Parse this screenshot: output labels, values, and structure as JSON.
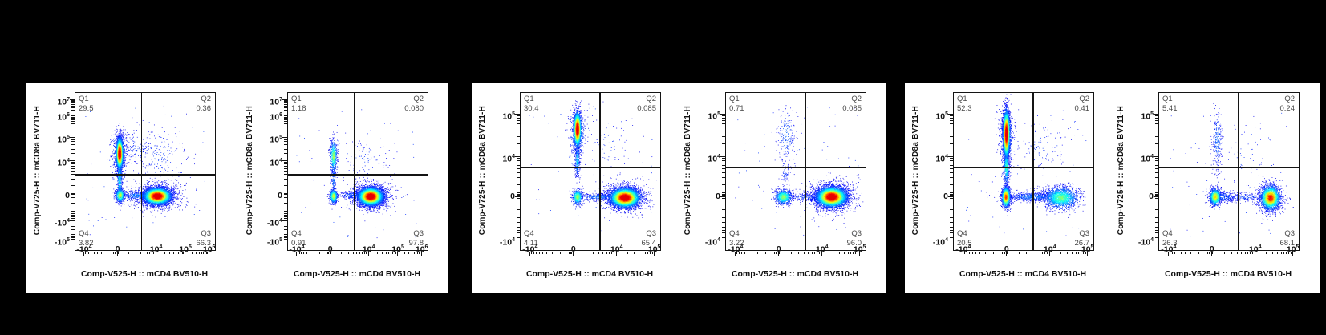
{
  "figure": {
    "description": "Flow cytometry pseudocolor dot plots with quadrant gates (Q1-Q4), mCD8a BV711 vs mCD4 BV510",
    "background": "#000000",
    "panel_background": "#ffffff",
    "axis_color": "#141414",
    "gate_color": "#141414",
    "quadrant_text_color": "#4a4a4a"
  },
  "panels": [
    {
      "name": "panel-1",
      "plots": [
        0,
        1
      ]
    },
    {
      "name": "panel-2",
      "plots": [
        2,
        3
      ]
    },
    {
      "name": "panel-3",
      "plots": [
        4,
        5
      ]
    }
  ],
  "chart_data": [
    {
      "type": "scatter",
      "xlabel": "Comp-V525-H :: mCD4 BV510-H",
      "ylabel": "Comp-V725-H :: mCD8a BV711-H",
      "x_ticks": [
        {
          "m": "-10",
          "e": "4",
          "frac": 0.06
        },
        {
          "m": "0",
          "frac": 0.3
        },
        {
          "m": "10",
          "e": "4",
          "frac": 0.575
        },
        {
          "m": "10",
          "e": "5",
          "frac": 0.785
        },
        {
          "m": "10",
          "e": "6",
          "frac": 0.955
        }
      ],
      "y_ticks": [
        {
          "m": "10",
          "e": "7",
          "frac": 0.045
        },
        {
          "m": "10",
          "e": "6",
          "frac": 0.14
        },
        {
          "m": "10",
          "e": "5",
          "frac": 0.285
        },
        {
          "m": "10",
          "e": "4",
          "frac": 0.43
        },
        {
          "m": "0",
          "frac": 0.655
        },
        {
          "m": "-10",
          "e": "4",
          "frac": 0.815
        },
        {
          "m": "-10",
          "e": "5",
          "frac": 0.935
        }
      ],
      "gate_x_frac": 0.475,
      "gate_y_frac": 0.52,
      "quadrants": [
        {
          "name": "Q1",
          "value": "29.5"
        },
        {
          "name": "Q2",
          "value": "0.36"
        },
        {
          "name": "Q3",
          "value": "66.3"
        },
        {
          "name": "Q4",
          "value": "3.82"
        }
      ],
      "clusters": [
        {
          "shape": "gauss",
          "x": 0.315,
          "y": 0.385,
          "sx": 0.012,
          "sy": 0.05,
          "n": 2600,
          "peak": 1.0
        },
        {
          "shape": "gauss",
          "x": 0.315,
          "y": 0.385,
          "sx": 0.028,
          "sy": 0.075,
          "n": 500,
          "peak": 0.22
        },
        {
          "shape": "gauss",
          "x": 0.315,
          "y": 0.55,
          "sx": 0.009,
          "sy": 0.07,
          "n": 450,
          "peak": 0.3
        },
        {
          "shape": "gauss",
          "x": 0.318,
          "y": 0.65,
          "sx": 0.016,
          "sy": 0.022,
          "n": 650,
          "peak": 0.55
        },
        {
          "shape": "gauss",
          "x": 0.585,
          "y": 0.655,
          "sx": 0.048,
          "sy": 0.026,
          "n": 5200,
          "peak": 1.0
        },
        {
          "shape": "gauss",
          "x": 0.585,
          "y": 0.655,
          "sx": 0.085,
          "sy": 0.045,
          "n": 800,
          "peak": 0.16
        },
        {
          "shape": "gauss",
          "x": 0.45,
          "y": 0.652,
          "sx": 0.065,
          "sy": 0.014,
          "n": 400,
          "peak": 0.18
        },
        {
          "shape": "gauss",
          "x": 0.6,
          "y": 0.4,
          "sx": 0.1,
          "sy": 0.09,
          "n": 200,
          "peak": 0.1
        },
        {
          "shape": "gauss",
          "x": 0.43,
          "y": 0.35,
          "sx": 0.06,
          "sy": 0.06,
          "n": 120,
          "peak": 0.1
        },
        {
          "shape": "uniform",
          "x": 0.05,
          "y": 0.08,
          "sx": 0.9,
          "sy": 0.84,
          "n": 60
        }
      ]
    },
    {
      "type": "scatter",
      "xlabel": "Comp-V525-H :: mCD4 BV510-H",
      "ylabel": "Comp-V725-H :: mCD8a BV711-H",
      "x_ticks": [
        {
          "m": "-10",
          "e": "4",
          "frac": 0.06
        },
        {
          "m": "0",
          "frac": 0.3
        },
        {
          "m": "10",
          "e": "4",
          "frac": 0.575
        },
        {
          "m": "10",
          "e": "5",
          "frac": 0.785
        },
        {
          "m": "10",
          "e": "6",
          "frac": 0.955
        }
      ],
      "y_ticks": [
        {
          "m": "10",
          "e": "7",
          "frac": 0.045
        },
        {
          "m": "10",
          "e": "6",
          "frac": 0.14
        },
        {
          "m": "10",
          "e": "5",
          "frac": 0.285
        },
        {
          "m": "10",
          "e": "4",
          "frac": 0.43
        },
        {
          "m": "0",
          "frac": 0.655
        },
        {
          "m": "-10",
          "e": "4",
          "frac": 0.815
        },
        {
          "m": "-10",
          "e": "5",
          "frac": 0.935
        }
      ],
      "gate_x_frac": 0.475,
      "gate_y_frac": 0.52,
      "quadrants": [
        {
          "name": "Q1",
          "value": "1.18"
        },
        {
          "name": "Q2",
          "value": "0.080"
        },
        {
          "name": "Q3",
          "value": "97.8"
        },
        {
          "name": "Q4",
          "value": "0.91"
        }
      ],
      "clusters": [
        {
          "shape": "gauss",
          "x": 0.325,
          "y": 0.4,
          "sx": 0.012,
          "sy": 0.05,
          "n": 520,
          "peak": 0.5
        },
        {
          "shape": "gauss",
          "x": 0.325,
          "y": 0.54,
          "sx": 0.009,
          "sy": 0.05,
          "n": 130,
          "peak": 0.18
        },
        {
          "shape": "gauss",
          "x": 0.325,
          "y": 0.655,
          "sx": 0.014,
          "sy": 0.022,
          "n": 600,
          "peak": 0.55
        },
        {
          "shape": "gauss",
          "x": 0.59,
          "y": 0.657,
          "sx": 0.044,
          "sy": 0.028,
          "n": 6000,
          "peak": 1.0
        },
        {
          "shape": "gauss",
          "x": 0.59,
          "y": 0.657,
          "sx": 0.08,
          "sy": 0.05,
          "n": 700,
          "peak": 0.15
        },
        {
          "shape": "gauss",
          "x": 0.46,
          "y": 0.65,
          "sx": 0.055,
          "sy": 0.012,
          "n": 220,
          "peak": 0.14
        },
        {
          "shape": "gauss",
          "x": 0.55,
          "y": 0.42,
          "sx": 0.09,
          "sy": 0.07,
          "n": 110,
          "peak": 0.09
        },
        {
          "shape": "uniform",
          "x": 0.05,
          "y": 0.08,
          "sx": 0.9,
          "sy": 0.84,
          "n": 50
        }
      ]
    },
    {
      "type": "scatter",
      "xlabel": "Comp-V525-H :: mCD4 BV510-H",
      "ylabel": "Comp-V725-H :: mCD8a BV711-H",
      "x_ticks": [
        {
          "m": "-10",
          "e": "4",
          "frac": 0.065
        },
        {
          "m": "0",
          "frac": 0.375
        },
        {
          "m": "10",
          "e": "4",
          "frac": 0.685
        },
        {
          "m": "10",
          "e": "5",
          "frac": 0.955
        }
      ],
      "y_ticks": [
        {
          "m": "10",
          "e": "5",
          "frac": 0.135
        },
        {
          "m": "10",
          "e": "4",
          "frac": 0.405
        },
        {
          "m": "0",
          "frac": 0.66
        },
        {
          "m": "-10",
          "e": "4",
          "frac": 0.935
        }
      ],
      "gate_x_frac": 0.57,
      "gate_y_frac": 0.478,
      "quadrants": [
        {
          "name": "Q1",
          "value": "30.4"
        },
        {
          "name": "Q2",
          "value": "0.085"
        },
        {
          "name": "Q3",
          "value": "65.4"
        },
        {
          "name": "Q4",
          "value": "4.11"
        }
      ],
      "clusters": [
        {
          "shape": "gauss",
          "x": 0.405,
          "y": 0.23,
          "sx": 0.013,
          "sy": 0.055,
          "n": 2400,
          "peak": 1.0
        },
        {
          "shape": "gauss",
          "x": 0.405,
          "y": 0.26,
          "sx": 0.03,
          "sy": 0.085,
          "n": 420,
          "peak": 0.22
        },
        {
          "shape": "gauss",
          "x": 0.405,
          "y": 0.43,
          "sx": 0.009,
          "sy": 0.05,
          "n": 280,
          "peak": 0.28
        },
        {
          "shape": "gauss",
          "x": 0.405,
          "y": 0.66,
          "sx": 0.018,
          "sy": 0.024,
          "n": 600,
          "peak": 0.5
        },
        {
          "shape": "gauss",
          "x": 0.745,
          "y": 0.665,
          "sx": 0.052,
          "sy": 0.03,
          "n": 5200,
          "peak": 1.0
        },
        {
          "shape": "gauss",
          "x": 0.745,
          "y": 0.665,
          "sx": 0.09,
          "sy": 0.05,
          "n": 750,
          "peak": 0.16
        },
        {
          "shape": "gauss",
          "x": 0.56,
          "y": 0.66,
          "sx": 0.075,
          "sy": 0.012,
          "n": 320,
          "peak": 0.16
        },
        {
          "shape": "gauss",
          "x": 0.62,
          "y": 0.32,
          "sx": 0.1,
          "sy": 0.1,
          "n": 80,
          "peak": 0.09
        },
        {
          "shape": "uniform",
          "x": 0.05,
          "y": 0.08,
          "sx": 0.9,
          "sy": 0.84,
          "n": 50
        }
      ]
    },
    {
      "type": "scatter",
      "xlabel": "Comp-V525-H :: mCD4 BV510-H",
      "ylabel": "Comp-V725-H :: mCD8a BV711-H",
      "x_ticks": [
        {
          "m": "-10",
          "e": "4",
          "frac": 0.065
        },
        {
          "m": "0",
          "frac": 0.375
        },
        {
          "m": "10",
          "e": "4",
          "frac": 0.685
        },
        {
          "m": "10",
          "e": "5",
          "frac": 0.955
        }
      ],
      "y_ticks": [
        {
          "m": "10",
          "e": "5",
          "frac": 0.135
        },
        {
          "m": "10",
          "e": "4",
          "frac": 0.405
        },
        {
          "m": "0",
          "frac": 0.66
        },
        {
          "m": "-10",
          "e": "4",
          "frac": 0.935
        }
      ],
      "gate_x_frac": 0.57,
      "gate_y_frac": 0.478,
      "quadrants": [
        {
          "name": "Q1",
          "value": "0.71"
        },
        {
          "name": "Q2",
          "value": "0.085"
        },
        {
          "name": "Q3",
          "value": "96.0"
        },
        {
          "name": "Q4",
          "value": "3.22"
        }
      ],
      "clusters": [
        {
          "shape": "gauss",
          "x": 0.43,
          "y": 0.27,
          "sx": 0.035,
          "sy": 0.09,
          "n": 220,
          "peak": 0.14
        },
        {
          "shape": "gauss",
          "x": 0.42,
          "y": 0.5,
          "sx": 0.02,
          "sy": 0.045,
          "n": 70,
          "peak": 0.1
        },
        {
          "shape": "gauss",
          "x": 0.41,
          "y": 0.66,
          "sx": 0.03,
          "sy": 0.023,
          "n": 850,
          "peak": 0.5
        },
        {
          "shape": "gauss",
          "x": 0.755,
          "y": 0.66,
          "sx": 0.053,
          "sy": 0.031,
          "n": 6200,
          "peak": 1.0
        },
        {
          "shape": "gauss",
          "x": 0.755,
          "y": 0.66,
          "sx": 0.095,
          "sy": 0.055,
          "n": 750,
          "peak": 0.14
        },
        {
          "shape": "gauss",
          "x": 0.57,
          "y": 0.66,
          "sx": 0.06,
          "sy": 0.012,
          "n": 160,
          "peak": 0.12
        },
        {
          "shape": "uniform",
          "x": 0.05,
          "y": 0.08,
          "sx": 0.9,
          "sy": 0.84,
          "n": 60
        }
      ]
    },
    {
      "type": "scatter",
      "xlabel": "Comp-V525-H :: mCD4 BV510-H",
      "ylabel": "Comp-V725-H :: mCD8a BV711-H",
      "x_ticks": [
        {
          "m": "-10",
          "e": "4",
          "frac": 0.065
        },
        {
          "m": "0",
          "frac": 0.375
        },
        {
          "m": "10",
          "e": "4",
          "frac": 0.685
        },
        {
          "m": "10",
          "e": "5",
          "frac": 0.955
        }
      ],
      "y_ticks": [
        {
          "m": "10",
          "e": "5",
          "frac": 0.135
        },
        {
          "m": "10",
          "e": "4",
          "frac": 0.405
        },
        {
          "m": "0",
          "frac": 0.66
        },
        {
          "m": "-10",
          "e": "4",
          "frac": 0.935
        }
      ],
      "gate_x_frac": 0.57,
      "gate_y_frac": 0.478,
      "quadrants": [
        {
          "name": "Q1",
          "value": "52.3"
        },
        {
          "name": "Q2",
          "value": "0.41"
        },
        {
          "name": "Q3",
          "value": "26.7"
        },
        {
          "name": "Q4",
          "value": "20.5"
        }
      ],
      "clusters": [
        {
          "shape": "gauss",
          "x": 0.375,
          "y": 0.26,
          "sx": 0.012,
          "sy": 0.075,
          "n": 3600,
          "peak": 1.0
        },
        {
          "shape": "gauss",
          "x": 0.375,
          "y": 0.28,
          "sx": 0.026,
          "sy": 0.1,
          "n": 550,
          "peak": 0.22
        },
        {
          "shape": "gauss",
          "x": 0.375,
          "y": 0.47,
          "sx": 0.01,
          "sy": 0.055,
          "n": 450,
          "peak": 0.38
        },
        {
          "shape": "gauss",
          "x": 0.372,
          "y": 0.66,
          "sx": 0.015,
          "sy": 0.032,
          "n": 1500,
          "peak": 0.78
        },
        {
          "shape": "gauss",
          "x": 0.765,
          "y": 0.665,
          "sx": 0.062,
          "sy": 0.034,
          "n": 1800,
          "peak": 0.45
        },
        {
          "shape": "gauss",
          "x": 0.56,
          "y": 0.66,
          "sx": 0.1,
          "sy": 0.016,
          "n": 650,
          "peak": 0.16
        },
        {
          "shape": "gauss",
          "x": 0.62,
          "y": 0.34,
          "sx": 0.1,
          "sy": 0.09,
          "n": 110,
          "peak": 0.09
        },
        {
          "shape": "uniform",
          "x": 0.05,
          "y": 0.08,
          "sx": 0.9,
          "sy": 0.84,
          "n": 70
        }
      ]
    },
    {
      "type": "scatter",
      "xlabel": "Comp-V525-H :: mCD4 BV510-H",
      "ylabel": "Comp-V725-H :: mCD8a BV711-H",
      "x_ticks": [
        {
          "m": "-10",
          "e": "4",
          "frac": 0.065
        },
        {
          "m": "0",
          "frac": 0.375
        },
        {
          "m": "10",
          "e": "4",
          "frac": 0.685
        },
        {
          "m": "10",
          "e": "5",
          "frac": 0.955
        }
      ],
      "y_ticks": [
        {
          "m": "10",
          "e": "5",
          "frac": 0.135
        },
        {
          "m": "10",
          "e": "4",
          "frac": 0.405
        },
        {
          "m": "0",
          "frac": 0.66
        },
        {
          "m": "-10",
          "e": "4",
          "frac": 0.935
        }
      ],
      "gate_x_frac": 0.57,
      "gate_y_frac": 0.478,
      "quadrants": [
        {
          "name": "Q1",
          "value": "5.41"
        },
        {
          "name": "Q2",
          "value": "0.24"
        },
        {
          "name": "Q3",
          "value": "68.1"
        },
        {
          "name": "Q4",
          "value": "26.3"
        }
      ],
      "clusters": [
        {
          "shape": "gauss",
          "x": 0.415,
          "y": 0.3,
          "sx": 0.017,
          "sy": 0.1,
          "n": 250,
          "peak": 0.16
        },
        {
          "shape": "gauss",
          "x": 0.4,
          "y": 0.66,
          "sx": 0.02,
          "sy": 0.027,
          "n": 1050,
          "peak": 0.62
        },
        {
          "shape": "gauss",
          "x": 0.46,
          "y": 0.66,
          "sx": 0.05,
          "sy": 0.018,
          "n": 280,
          "peak": 0.14
        },
        {
          "shape": "gauss",
          "x": 0.795,
          "y": 0.665,
          "sx": 0.034,
          "sy": 0.037,
          "n": 2300,
          "peak": 0.85
        },
        {
          "shape": "gauss",
          "x": 0.795,
          "y": 0.665,
          "sx": 0.06,
          "sy": 0.06,
          "n": 300,
          "peak": 0.14
        },
        {
          "shape": "gauss",
          "x": 0.61,
          "y": 0.66,
          "sx": 0.085,
          "sy": 0.014,
          "n": 220,
          "peak": 0.11
        },
        {
          "shape": "gauss",
          "x": 0.6,
          "y": 0.4,
          "sx": 0.12,
          "sy": 0.12,
          "n": 60,
          "peak": 0.08
        },
        {
          "shape": "uniform",
          "x": 0.05,
          "y": 0.08,
          "sx": 0.9,
          "sy": 0.84,
          "n": 60
        }
      ]
    }
  ]
}
